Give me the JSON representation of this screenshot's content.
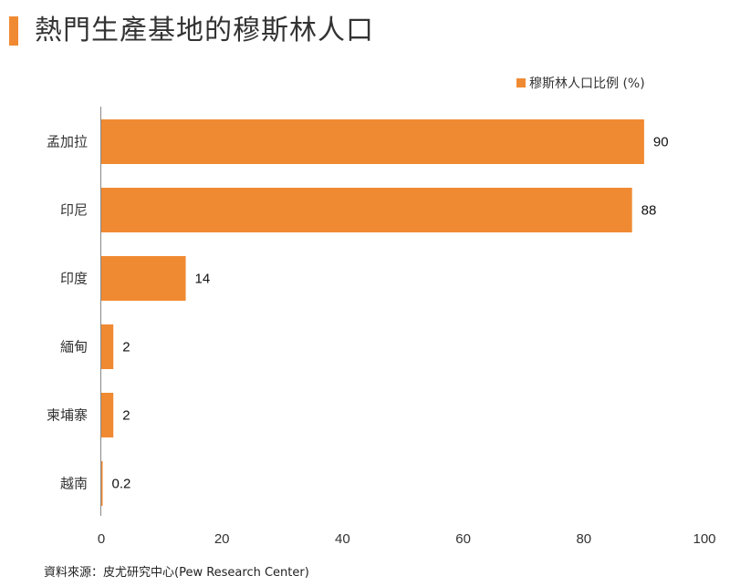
{
  "header": {
    "title": "熱門生產基地的穆斯林人口"
  },
  "footer": {
    "source": "資料來源：皮尤研究中心(Pew Research Center)"
  },
  "colors": {
    "bar": "#f08a32",
    "axis": "#888888"
  },
  "chart_data": {
    "type": "bar",
    "orientation": "horizontal",
    "title": "熱門生產基地的穆斯林人口",
    "categories": [
      "孟加拉",
      "印尼",
      "印度",
      "緬甸",
      "柬埔寨",
      "越南"
    ],
    "series": [
      {
        "name": "穆斯林人口比例 (%)",
        "values": [
          90,
          88,
          14,
          2,
          2,
          0.2
        ]
      }
    ],
    "value_labels": [
      "90",
      "88",
      "14",
      "2",
      "2",
      "0.2"
    ],
    "xlim": [
      0,
      100
    ],
    "x_ticks": [
      0,
      20,
      40,
      60,
      80,
      100
    ],
    "grid": false,
    "legend_position": "top-right"
  }
}
